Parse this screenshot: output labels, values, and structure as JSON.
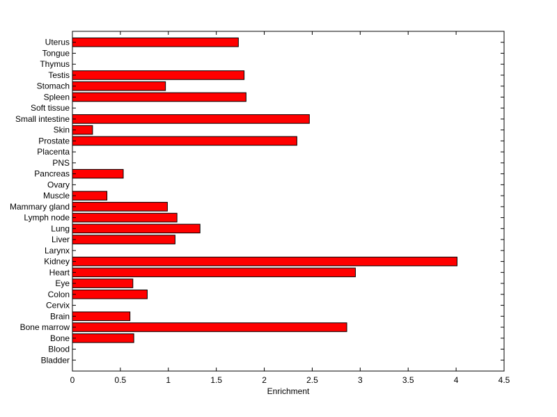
{
  "chart_data": {
    "type": "bar",
    "orientation": "horizontal",
    "categories": [
      "Bladder",
      "Blood",
      "Bone",
      "Bone marrow",
      "Brain",
      "Cervix",
      "Colon",
      "Eye",
      "Heart",
      "Kidney",
      "Larynx",
      "Liver",
      "Lung",
      "Lymph node",
      "Mammary gland",
      "Muscle",
      "Ovary",
      "Pancreas",
      "PNS",
      "Placenta",
      "Prostate",
      "Skin",
      "Small intestine",
      "Soft tissue",
      "Spleen",
      "Stomach",
      "Testis",
      "Thymus",
      "Tongue",
      "Uterus"
    ],
    "values": [
      0,
      0,
      0.64,
      2.86,
      0.6,
      0,
      0.78,
      0.63,
      2.95,
      4.01,
      0,
      1.07,
      1.33,
      1.09,
      0.99,
      0.36,
      0,
      0.53,
      0,
      0,
      2.34,
      0.21,
      2.47,
      0,
      1.81,
      0.97,
      1.79,
      0,
      0,
      1.73
    ],
    "xlabel": "Enrichment",
    "ylabel": "",
    "title": "",
    "xlim": [
      0,
      4.5
    ],
    "xticks": [
      "0",
      "0.5",
      "1",
      "1.5",
      "2",
      "2.5",
      "3",
      "3.5",
      "4",
      "4.5"
    ],
    "grid": false,
    "legend": "none",
    "bar_color": "#ff0000",
    "bar_edge_color": "#000000"
  }
}
